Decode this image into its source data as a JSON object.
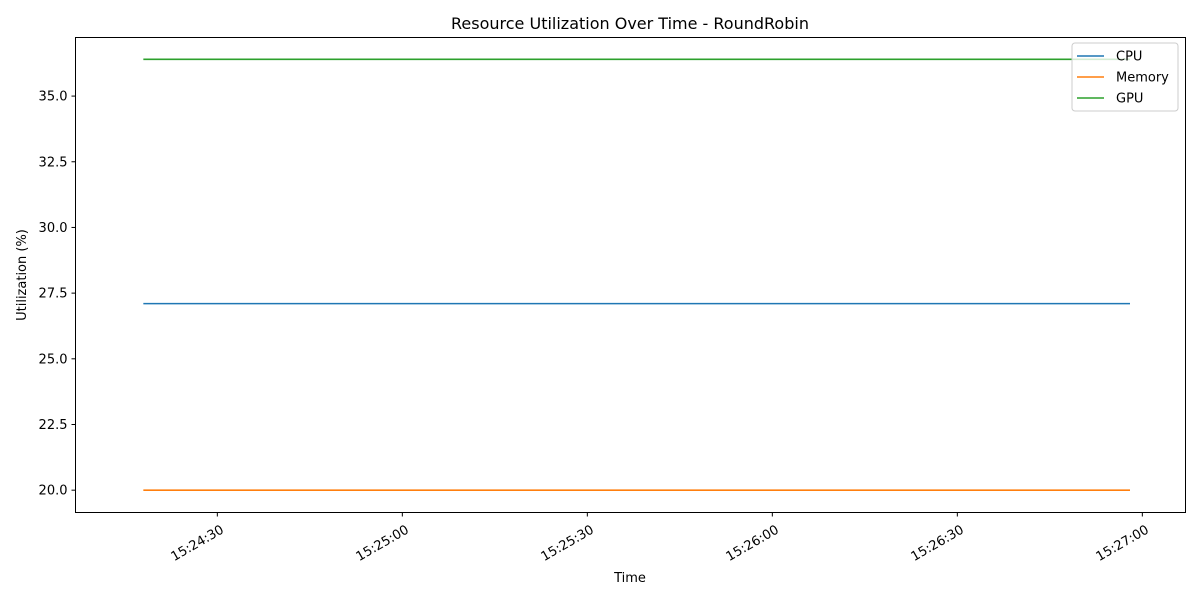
{
  "chart_data": {
    "type": "line",
    "title": "Resource Utilization Over Time - RoundRobin",
    "xlabel": "Time",
    "ylabel": "Utilization (%)",
    "x": [
      "15:24:18",
      "15:26:58"
    ],
    "series": [
      {
        "name": "CPU",
        "color": "#1f77b4",
        "values": [
          27.1,
          27.1
        ]
      },
      {
        "name": "Memory",
        "color": "#ff7f0e",
        "values": [
          20.0,
          20.0
        ]
      },
      {
        "name": "GPU",
        "color": "#2ca02c",
        "values": [
          36.4,
          36.4
        ]
      }
    ],
    "xticks": [
      "15:24:30",
      "15:25:00",
      "15:25:30",
      "15:26:00",
      "15:26:30",
      "15:27:00"
    ],
    "yticks": [
      "20.0",
      "22.5",
      "25.0",
      "27.5",
      "30.0",
      "32.5",
      "35.0"
    ],
    "xlim": [
      "15:24:07",
      "15:27:07"
    ],
    "ylim": [
      19.15,
      37.23
    ],
    "grid": false,
    "legend_position": "top-right"
  }
}
